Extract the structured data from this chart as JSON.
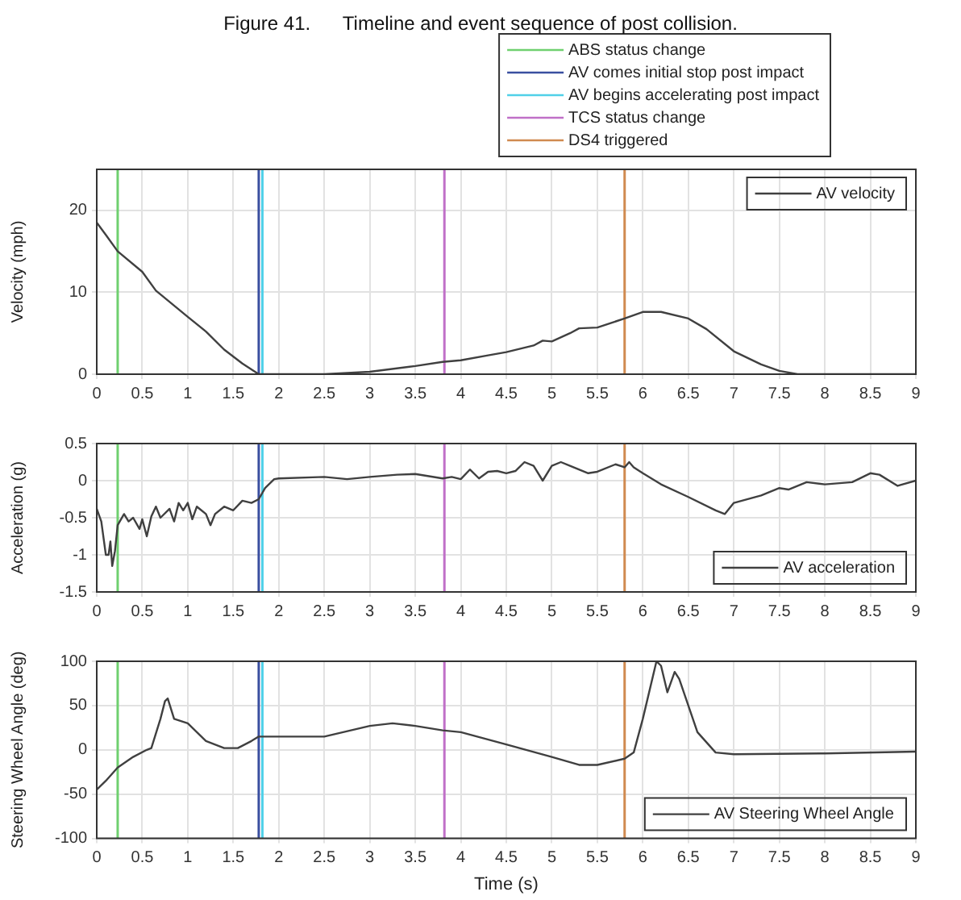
{
  "chart_data": [
    {
      "type": "line",
      "title": "Figure 41.      Timeline and event sequence of post collision.",
      "ylabel": "Velocity (mph)",
      "xlim": [
        0,
        9
      ],
      "xticks": [
        0,
        0.5,
        1,
        1.5,
        2,
        2.5,
        3,
        3.5,
        4,
        4.5,
        5,
        5.5,
        6,
        6.5,
        7,
        7.5,
        8,
        8.5,
        9
      ],
      "ylim": [
        0,
        25
      ],
      "yticks": [
        0,
        10,
        20
      ],
      "grid": true,
      "legend": "top right",
      "ref_lines": [
        {
          "axis": "x",
          "value": 0.23,
          "label": "ABS status change",
          "color": "#6fd06f"
        },
        {
          "axis": "x",
          "value": 1.78,
          "label": "AV comes initial stop post impact",
          "color": "#3a4fa0"
        },
        {
          "axis": "x",
          "value": 1.82,
          "label": "AV begins accelerating post impact",
          "color": "#50d0e8"
        },
        {
          "axis": "x",
          "value": 3.82,
          "label": "TCS status change",
          "color": "#c070c8"
        },
        {
          "axis": "x",
          "value": 5.8,
          "label": "DS4 triggered",
          "color": "#d08a50"
        }
      ],
      "series": [
        {
          "name": "AV velocity",
          "color": "#404040",
          "x": [
            0,
            0.1,
            0.23,
            0.5,
            0.65,
            1.0,
            1.2,
            1.4,
            1.6,
            1.78,
            2.5,
            3,
            3.5,
            3.8,
            4,
            4.3,
            4.5,
            4.8,
            4.9,
            5.0,
            5.2,
            5.3,
            5.5,
            5.8,
            6.0,
            6.2,
            6.5,
            6.7,
            7.0,
            7.3,
            7.5,
            7.7,
            9
          ],
          "values": [
            18.5,
            17,
            15,
            12.5,
            10.2,
            7,
            5.2,
            3,
            1.3,
            0,
            0,
            0.3,
            1,
            1.5,
            1.7,
            2.3,
            2.7,
            3.5,
            4.1,
            4.0,
            5,
            5.6,
            5.7,
            6.8,
            7.6,
            7.6,
            6.8,
            5.5,
            2.8,
            1.2,
            0.4,
            0,
            0
          ]
        }
      ]
    },
    {
      "type": "line",
      "ylabel": "Acceleration (g)",
      "xlim": [
        0,
        9
      ],
      "xticks": [
        0,
        0.5,
        1,
        1.5,
        2,
        2.5,
        3,
        3.5,
        4,
        4.5,
        5,
        5.5,
        6,
        6.5,
        7,
        7.5,
        8,
        8.5,
        9
      ],
      "ylim": [
        -1.5,
        0.5
      ],
      "yticks": [
        -1.5,
        -1,
        -0.5,
        0,
        0.5
      ],
      "grid": true,
      "legend": "bottom right",
      "ref_lines": [
        {
          "axis": "x",
          "value": 0.23,
          "color": "#6fd06f"
        },
        {
          "axis": "x",
          "value": 1.78,
          "color": "#3a4fa0"
        },
        {
          "axis": "x",
          "value": 1.82,
          "color": "#50d0e8"
        },
        {
          "axis": "x",
          "value": 3.82,
          "color": "#c070c8"
        },
        {
          "axis": "x",
          "value": 5.8,
          "color": "#d08a50"
        }
      ],
      "series": [
        {
          "name": "AV acceleration",
          "color": "#404040",
          "x": [
            0,
            0.05,
            0.1,
            0.13,
            0.15,
            0.17,
            0.2,
            0.23,
            0.3,
            0.35,
            0.4,
            0.47,
            0.5,
            0.55,
            0.6,
            0.65,
            0.7,
            0.8,
            0.85,
            0.9,
            0.95,
            1.0,
            1.05,
            1.1,
            1.2,
            1.25,
            1.3,
            1.4,
            1.5,
            1.6,
            1.7,
            1.78,
            1.85,
            1.95,
            2.0,
            2.5,
            2.75,
            3.0,
            3.3,
            3.5,
            3.8,
            3.9,
            4.0,
            4.1,
            4.2,
            4.3,
            4.4,
            4.5,
            4.6,
            4.7,
            4.8,
            4.9,
            5.0,
            5.1,
            5.2,
            5.4,
            5.5,
            5.7,
            5.8,
            5.85,
            5.9,
            6.0,
            6.2,
            6.5,
            6.8,
            6.9,
            7.0,
            7.3,
            7.5,
            7.6,
            7.8,
            8.0,
            8.3,
            8.5,
            8.6,
            8.8,
            9.0
          ],
          "values": [
            -0.38,
            -0.55,
            -1.0,
            -1.0,
            -0.82,
            -1.15,
            -0.95,
            -0.6,
            -0.45,
            -0.55,
            -0.5,
            -0.65,
            -0.52,
            -0.75,
            -0.48,
            -0.35,
            -0.5,
            -0.38,
            -0.55,
            -0.3,
            -0.4,
            -0.3,
            -0.52,
            -0.35,
            -0.45,
            -0.6,
            -0.45,
            -0.35,
            -0.4,
            -0.27,
            -0.3,
            -0.25,
            -0.1,
            0.02,
            0.03,
            0.05,
            0.02,
            0.05,
            0.08,
            0.09,
            0.03,
            0.05,
            0.02,
            0.15,
            0.03,
            0.12,
            0.13,
            0.1,
            0.13,
            0.25,
            0.2,
            0.0,
            0.2,
            0.25,
            0.2,
            0.1,
            0.12,
            0.22,
            0.18,
            0.25,
            0.18,
            0.1,
            -0.05,
            -0.22,
            -0.4,
            -0.45,
            -0.3,
            -0.2,
            -0.1,
            -0.12,
            -0.02,
            -0.05,
            -0.02,
            0.1,
            0.08,
            -0.07,
            0.0
          ]
        }
      ]
    },
    {
      "type": "line",
      "xlabel": "Time (s)",
      "ylabel": "Steering Wheel Angle (deg)",
      "xlim": [
        0,
        9
      ],
      "xticks": [
        0,
        0.5,
        1,
        1.5,
        2,
        2.5,
        3,
        3.5,
        4,
        4.5,
        5,
        5.5,
        6,
        6.5,
        7,
        7.5,
        8,
        8.5,
        9
      ],
      "ylim": [
        -100,
        100
      ],
      "yticks": [
        -100,
        -50,
        0,
        50,
        100
      ],
      "grid": true,
      "legend": "bottom right",
      "ref_lines": [
        {
          "axis": "x",
          "value": 0.23,
          "color": "#6fd06f"
        },
        {
          "axis": "x",
          "value": 1.78,
          "color": "#3a4fa0"
        },
        {
          "axis": "x",
          "value": 1.82,
          "color": "#50d0e8"
        },
        {
          "axis": "x",
          "value": 3.82,
          "color": "#c070c8"
        },
        {
          "axis": "x",
          "value": 5.8,
          "color": "#d08a50"
        }
      ],
      "series": [
        {
          "name": "AV Steering Wheel Angle",
          "color": "#404040",
          "x": [
            0,
            0.1,
            0.23,
            0.4,
            0.55,
            0.6,
            0.7,
            0.75,
            0.78,
            0.85,
            1.0,
            1.2,
            1.4,
            1.55,
            1.7,
            1.78,
            2.0,
            2.5,
            3.0,
            3.25,
            3.5,
            3.8,
            4.0,
            4.5,
            5.0,
            5.3,
            5.5,
            5.8,
            5.9,
            6.0,
            6.15,
            6.2,
            6.27,
            6.35,
            6.4,
            6.6,
            6.8,
            7.0,
            8.0,
            9.0
          ],
          "values": [
            -45,
            -35,
            -20,
            -8,
            0,
            2,
            35,
            55,
            58,
            35,
            30,
            10,
            2,
            2,
            10,
            15,
            15,
            15,
            27,
            30,
            27,
            22,
            20,
            6,
            -8,
            -17,
            -17,
            -10,
            -3,
            35,
            100,
            95,
            65,
            88,
            80,
            20,
            -3,
            -5,
            -4,
            -2
          ]
        }
      ]
    }
  ]
}
